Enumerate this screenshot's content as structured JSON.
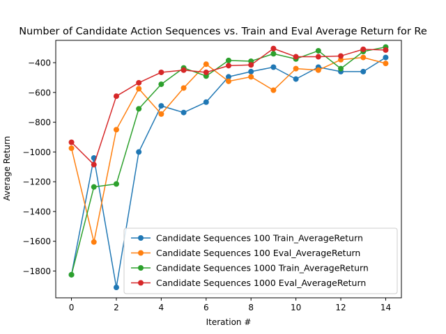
{
  "chart_data": {
    "type": "line",
    "title": "Number of Candidate Action Sequences vs. Train and Eval Average Return for Re",
    "xlabel": "Iteration #",
    "ylabel": "Average Return",
    "xlim": [
      -0.7,
      14.7
    ],
    "ylim": [
      -1980,
      -250
    ],
    "xticks": [
      0,
      2,
      4,
      6,
      8,
      10,
      12,
      14
    ],
    "yticks": [
      -1800,
      -1600,
      -1400,
      -1200,
      -1000,
      -800,
      -600,
      -400
    ],
    "grid": false,
    "legend_position": "lower-right",
    "x": [
      0,
      1,
      2,
      3,
      4,
      5,
      6,
      7,
      8,
      9,
      10,
      11,
      12,
      13,
      14
    ],
    "series": [
      {
        "name": "Candidate Sequences 100 Train_AverageReturn",
        "color": "#1f77b4",
        "values": [
          -1825,
          -1040,
          -1910,
          -1000,
          -690,
          -735,
          -665,
          -495,
          -460,
          -430,
          -510,
          -430,
          -460,
          -460,
          -365
        ]
      },
      {
        "name": "Candidate Sequences 100 Eval_AverageReturn",
        "color": "#ff7f0e",
        "values": [
          -975,
          -1605,
          -850,
          -575,
          -745,
          -570,
          -410,
          -525,
          -495,
          -585,
          -440,
          -450,
          -380,
          -365,
          -405
        ]
      },
      {
        "name": "Candidate Sequences 1000 Train_AverageReturn",
        "color": "#2ca02c",
        "values": [
          -1825,
          -1235,
          -1215,
          -710,
          -545,
          -435,
          -490,
          -385,
          -390,
          -340,
          -375,
          -320,
          -440,
          -325,
          -295
        ]
      },
      {
        "name": "Candidate Sequences 1000 Eval_AverageReturn",
        "color": "#d62728",
        "values": [
          -935,
          -1085,
          -625,
          -535,
          -465,
          -450,
          -465,
          -420,
          -415,
          -305,
          -360,
          -360,
          -355,
          -310,
          -315
        ]
      }
    ]
  }
}
